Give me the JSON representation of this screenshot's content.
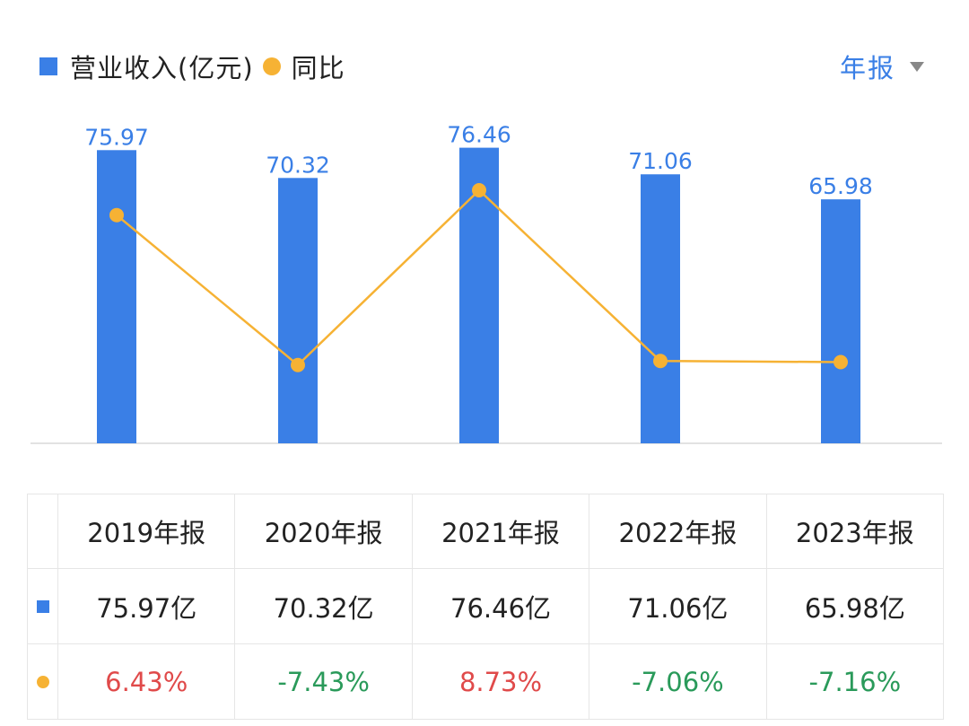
{
  "legend": {
    "bar_label": "营业收入(亿元)",
    "line_label": "同比"
  },
  "period_selector": {
    "label": "年报"
  },
  "colors": {
    "bar": "#3a7fe6",
    "line": "#f6b234",
    "positive": "#e04a4a",
    "negative": "#2a9a5a"
  },
  "chart_data": {
    "type": "bar",
    "categories": [
      "2019年报",
      "2020年报",
      "2021年报",
      "2022年报",
      "2023年报"
    ],
    "series": [
      {
        "name": "营业收入(亿元)",
        "type": "bar",
        "values": [
          75.97,
          70.32,
          76.46,
          71.06,
          65.98
        ],
        "labels": [
          "75.97",
          "70.32",
          "76.46",
          "71.06",
          "65.98"
        ]
      },
      {
        "name": "同比",
        "type": "line",
        "values": [
          6.43,
          -7.43,
          8.73,
          -7.06,
          -7.16
        ]
      }
    ],
    "title": "",
    "xlabel": "",
    "ylabel": "",
    "grid": false
  },
  "table": {
    "headers": [
      "2019年报",
      "2020年报",
      "2021年报",
      "2022年报",
      "2023年报"
    ],
    "revenue": [
      "75.97亿",
      "70.32亿",
      "76.46亿",
      "71.06亿",
      "65.98亿"
    ],
    "yoy": [
      "6.43%",
      "-7.43%",
      "8.73%",
      "-7.06%",
      "-7.16%"
    ]
  }
}
